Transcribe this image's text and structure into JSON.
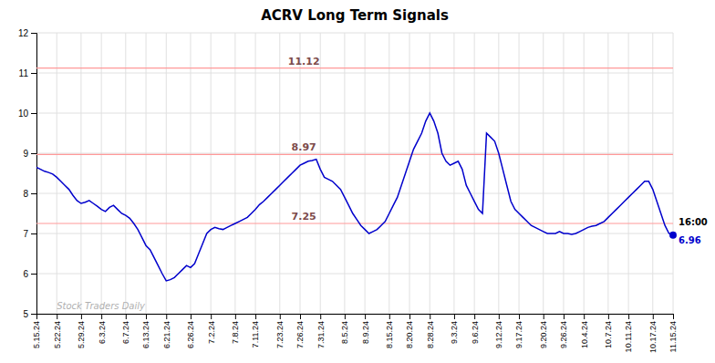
{
  "chart_data": {
    "type": "line",
    "title": "ACRV Long Term Signals",
    "categories": [
      "5.15.24",
      null,
      null,
      null,
      null,
      "5.22.24",
      null,
      null,
      null,
      null,
      null,
      "5.29.24",
      null,
      null,
      null,
      null,
      "6.3.24",
      null,
      null,
      null,
      null,
      null,
      "6.7.24",
      null,
      null,
      null,
      null,
      "6.13.24",
      null,
      null,
      null,
      null,
      "6.21.24",
      null,
      null,
      null,
      null,
      null,
      "6.26.24",
      null,
      null,
      null,
      null,
      "7.2.24",
      null,
      null,
      null,
      null,
      null,
      "7.8.24",
      null,
      null,
      null,
      null,
      "7.11.24",
      null,
      null,
      null,
      null,
      null,
      "7.23.24",
      null,
      null,
      null,
      null,
      "7.26.24",
      null,
      null,
      null,
      null,
      "7.31.24",
      null,
      null,
      null,
      null,
      null,
      "8.5.24",
      null,
      null,
      null,
      null,
      "8.9.24",
      null,
      null,
      null,
      null,
      null,
      "8.15.24",
      null,
      null,
      null,
      null,
      "8.20.24",
      null,
      null,
      null,
      null,
      "8.28.24",
      null,
      null,
      null,
      null,
      null,
      "9.3.24",
      null,
      null,
      null,
      null,
      "9.6.24",
      null,
      null,
      null,
      null,
      null,
      "9.12.24",
      null,
      null,
      null,
      null,
      "9.17.24",
      null,
      null,
      null,
      null,
      null,
      "9.20.24",
      null,
      null,
      null,
      null,
      "9.26.24",
      null,
      null,
      null,
      null,
      "10.4.24",
      null,
      null,
      null,
      null,
      null,
      "10.7.24",
      null,
      null,
      null,
      null,
      "10.11.24",
      null,
      null,
      null,
      null,
      null,
      "10.17.24",
      null,
      null,
      null,
      null,
      "11.15.24"
    ],
    "values": [
      8.65,
      8.6,
      8.55,
      8.52,
      8.48,
      8.4,
      8.3,
      8.2,
      8.1,
      7.95,
      7.82,
      7.75,
      7.78,
      7.82,
      7.75,
      7.68,
      7.6,
      7.55,
      7.65,
      7.7,
      7.6,
      7.5,
      7.45,
      7.38,
      7.25,
      7.1,
      6.9,
      6.7,
      6.6,
      6.4,
      6.2,
      6.0,
      5.82,
      5.85,
      5.9,
      6.0,
      6.1,
      6.2,
      6.15,
      6.25,
      6.5,
      6.75,
      7.0,
      7.1,
      7.15,
      7.12,
      7.1,
      7.15,
      7.2,
      7.25,
      7.3,
      7.35,
      7.4,
      7.5,
      7.6,
      7.72,
      7.8,
      7.9,
      8.0,
      8.1,
      8.2,
      8.3,
      8.4,
      8.5,
      8.6,
      8.7,
      8.75,
      8.8,
      8.82,
      8.85,
      8.6,
      8.4,
      8.35,
      8.3,
      8.2,
      8.1,
      7.9,
      7.7,
      7.5,
      7.35,
      7.2,
      7.1,
      7.0,
      7.05,
      7.1,
      7.2,
      7.3,
      7.5,
      7.7,
      7.9,
      8.2,
      8.5,
      8.8,
      9.1,
      9.3,
      9.5,
      9.8,
      10.0,
      9.8,
      9.5,
      9.0,
      8.8,
      8.7,
      8.75,
      8.8,
      8.6,
      8.2,
      8.0,
      7.8,
      7.6,
      7.5,
      9.5,
      9.4,
      9.3,
      9.0,
      8.6,
      8.2,
      7.8,
      7.6,
      7.5,
      7.4,
      7.3,
      7.2,
      7.15,
      7.1,
      7.05,
      7.0,
      7.0,
      7.0,
      7.05,
      7.0,
      7.0,
      6.98,
      7.0,
      7.05,
      7.1,
      7.15,
      7.18,
      7.2,
      7.25,
      7.3,
      7.4,
      7.5,
      7.6,
      7.7,
      7.8,
      7.9,
      8.0,
      8.1,
      8.2,
      8.3,
      8.3,
      8.1,
      7.8,
      7.5,
      7.2,
      7.0,
      6.96
    ],
    "color": "#0000cc",
    "hlines": [
      {
        "y": 7.25,
        "label": "7.25",
        "color": "#ff9999"
      },
      {
        "y": 8.97,
        "label": "8.97",
        "color": "#ff9999"
      },
      {
        "y": 11.12,
        "label": "11.12",
        "color": "#ff9999"
      }
    ],
    "last_point": {
      "time_label": "16:00",
      "value_label": "6.96"
    },
    "watermark": "Stock Traders Daily",
    "ylim": [
      5,
      12
    ],
    "yticks": [
      5,
      6,
      7,
      8,
      9,
      10,
      11,
      12
    ],
    "grid": true
  }
}
